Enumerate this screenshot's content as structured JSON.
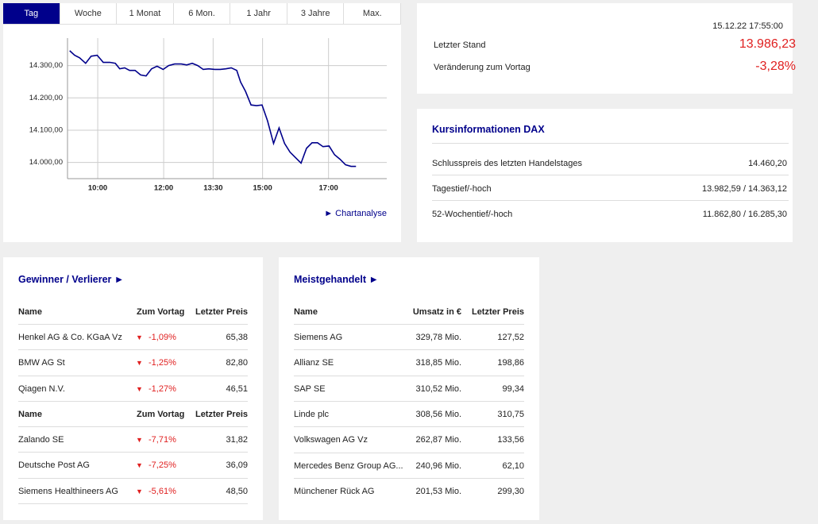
{
  "tabs": [
    "Tag",
    "Woche",
    "1 Monat",
    "6 Mon.",
    "1 Jahr",
    "3 Jahre",
    "Max."
  ],
  "selected_tab": 0,
  "chart_data": {
    "type": "line",
    "color": "#00008b",
    "grid": true,
    "x": [
      549,
      558,
      567,
      578,
      588,
      599,
      610,
      622,
      632,
      640,
      649,
      658,
      668,
      678,
      688,
      698,
      708,
      719,
      729,
      740,
      752,
      762,
      772,
      782,
      792,
      802,
      813,
      823,
      833,
      843,
      853,
      860,
      869,
      879,
      889,
      899,
      909,
      920,
      930,
      940,
      950,
      960,
      970,
      980,
      990,
      1000,
      1010,
      1021,
      1031,
      1041,
      1051,
      1061,
      1070
    ],
    "values": [
      14346,
      14332,
      14324,
      14307,
      14329,
      14332,
      14310,
      14310,
      14307,
      14290,
      14293,
      14285,
      14285,
      14271,
      14268,
      14290,
      14298,
      14288,
      14300,
      14305,
      14305,
      14302,
      14307,
      14300,
      14288,
      14290,
      14288,
      14288,
      14290,
      14293,
      14285,
      14249,
      14220,
      14178,
      14176,
      14178,
      14129,
      14059,
      14107,
      14059,
      14032,
      14015,
      13998,
      14044,
      14061,
      14061,
      14049,
      14051,
      14024,
      14010,
      13993,
      13988,
      13988
    ],
    "xlim": [
      545,
      1126
    ],
    "xticks": [
      {
        "value": 600,
        "label": "10:00"
      },
      {
        "value": 720,
        "label": "12:00"
      },
      {
        "value": 810,
        "label": "13:30"
      },
      {
        "value": 900,
        "label": "15:00"
      },
      {
        "value": 1020,
        "label": "17:00"
      }
    ],
    "ylim": [
      13950,
      14385
    ],
    "yticks": [
      {
        "value": 14000,
        "label": "14.000,00"
      },
      {
        "value": 14100,
        "label": "14.100,00"
      },
      {
        "value": 14200,
        "label": "14.200,00"
      },
      {
        "value": 14300,
        "label": "14.300,00"
      }
    ]
  },
  "chart_link": "► Chartanalyse",
  "quote": {
    "timestamp": "15.12.22 17:55:00",
    "rows": [
      [
        "Letzter Stand",
        "13.986,23"
      ],
      [
        "Veränderung zum Vortag",
        "-3,28%"
      ]
    ]
  },
  "info": {
    "title": "Kursinformationen DAX",
    "rows": [
      [
        "Schlusspreis des letzten Handelstages",
        "14.460,20"
      ],
      [
        "Tagestief/-hoch",
        "13.982,59 / 14.363,12"
      ],
      [
        "52-Wochentief/-hoch",
        "11.862,80 / 16.285,30"
      ]
    ]
  },
  "movers": {
    "title": "Gewinner / Verlierer ►",
    "sections": [
      {
        "header": [
          "Name",
          "Zum Vortag",
          "Letzter Preis"
        ],
        "rows": [
          [
            "Henkel AG & Co. KGaA Vz",
            "-1,09%",
            "65,38"
          ],
          [
            "BMW AG St",
            "-1,25%",
            "82,80"
          ],
          [
            "Qiagen N.V.",
            "-1,27%",
            "46,51"
          ]
        ]
      },
      {
        "header": [
          "Name",
          "Zum Vortag",
          "Letzter Preis"
        ],
        "rows": [
          [
            "Zalando SE",
            "-7,71%",
            "31,82"
          ],
          [
            "Deutsche Post AG",
            "-7,25%",
            "36,09"
          ],
          [
            "Siemens Healthineers AG",
            "-5,61%",
            "48,50"
          ]
        ]
      }
    ]
  },
  "traded": {
    "title": "Meistgehandelt ►",
    "header": [
      "Name",
      "Umsatz in €",
      "Letzter Preis"
    ],
    "rows": [
      [
        "Siemens AG",
        "329,78 Mio.",
        "127,52"
      ],
      [
        "Allianz SE",
        "318,85 Mio.",
        "198,86"
      ],
      [
        "SAP SE",
        "310,52 Mio.",
        "99,34"
      ],
      [
        "Linde plc",
        "308,56 Mio.",
        "310,75"
      ],
      [
        "Volkswagen AG Vz",
        "262,87 Mio.",
        "133,56"
      ],
      [
        "Mercedes Benz Group AG...",
        "240,96 Mio.",
        "62,10"
      ],
      [
        "Münchener Rück AG",
        "201,53 Mio.",
        "299,30"
      ]
    ]
  }
}
